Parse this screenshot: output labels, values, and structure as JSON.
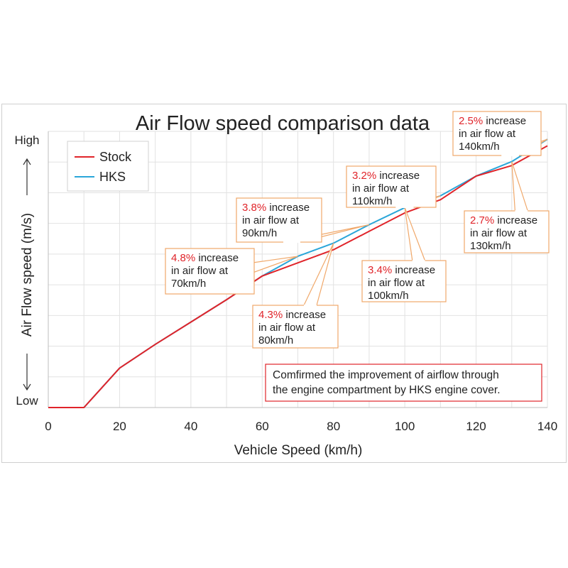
{
  "chart_data": {
    "type": "line",
    "title": "Air Flow speed comparison data",
    "xlabel": "Vehicle Speed (km/h)",
    "ylabel": "Air Flow speed (m/s)",
    "y_top_label": "High",
    "y_bottom_label": "Low",
    "xlim": [
      0,
      140
    ],
    "x_ticks": [
      0,
      20,
      40,
      60,
      80,
      100,
      120,
      140
    ],
    "y_scale": "relative, unlabeled (0 = Low, 100 = High)",
    "ylim": [
      0,
      100
    ],
    "grid": true,
    "legend_position": "top-left",
    "x": [
      0,
      10,
      20,
      30,
      40,
      50,
      60,
      70,
      80,
      90,
      100,
      110,
      120,
      130,
      140
    ],
    "series": [
      {
        "name": "Stock",
        "color": "#e0242a",
        "values": [
          0,
          0,
          15,
          24,
          32.5,
          41,
          50,
          55,
          60,
          67,
          74,
          79,
          88,
          92,
          99.5
        ]
      },
      {
        "name": "HKS",
        "color": "#2aa6d9",
        "values": [
          0,
          0,
          15,
          24,
          32.5,
          41,
          50,
          57.5,
          62.5,
          69.5,
          76,
          80.5,
          88,
          93.5,
          102
        ]
      }
    ],
    "annotations": [
      {
        "pct": "4.8%",
        "text": "increase",
        "line2": "in air flow at",
        "line3": "70km/h"
      },
      {
        "pct": "4.3%",
        "text": "increase",
        "line2": "in air flow at",
        "line3": "80km/h"
      },
      {
        "pct": "3.8%",
        "text": "increase",
        "line2": "in air flow at",
        "line3": "90km/h"
      },
      {
        "pct": "3.4%",
        "text": "increase",
        "line2": "in air flow at",
        "line3": "100km/h"
      },
      {
        "pct": "3.2%",
        "text": "increase",
        "line2": "in air flow at",
        "line3": "110km/h"
      },
      {
        "pct": "2.7%",
        "text": "increase",
        "line2": "in air flow at",
        "line3": "130km/h"
      },
      {
        "pct": "2.5%",
        "text": "increase",
        "line2": "in air flow at",
        "line3": "140km/h"
      }
    ],
    "note": {
      "line1": "Comfirmed the improvement of airflow through",
      "line2": "the engine compartment by HKS engine cover."
    }
  }
}
